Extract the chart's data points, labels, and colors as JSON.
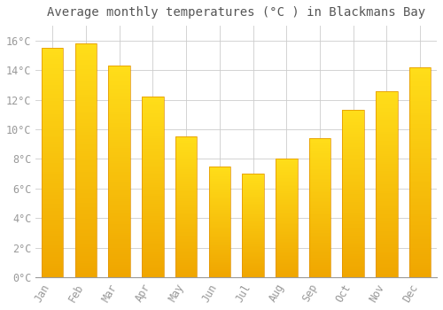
{
  "title": "Average monthly temperatures (°C ) in Blackmans Bay",
  "months": [
    "Jan",
    "Feb",
    "Mar",
    "Apr",
    "May",
    "Jun",
    "Jul",
    "Aug",
    "Sep",
    "Oct",
    "Nov",
    "Dec"
  ],
  "values": [
    15.5,
    15.8,
    14.3,
    12.2,
    9.5,
    7.5,
    7.0,
    8.0,
    9.4,
    11.3,
    12.6,
    14.2
  ],
  "bar_color_bottom": "#F0A500",
  "bar_color_top": "#FFD966",
  "bar_color_main": "#FFAA00",
  "background_color": "#FFFFFF",
  "grid_color": "#CCCCCC",
  "text_color": "#999999",
  "ylim": [
    0,
    17.0
  ],
  "yticks": [
    0,
    2,
    4,
    6,
    8,
    10,
    12,
    14,
    16
  ],
  "ytick_labels": [
    "0°C",
    "2°C",
    "4°C",
    "6°C",
    "8°C",
    "10°C",
    "12°C",
    "14°C",
    "16°C"
  ],
  "title_fontsize": 10,
  "tick_fontsize": 8.5,
  "font_family": "monospace",
  "bar_width": 0.65
}
